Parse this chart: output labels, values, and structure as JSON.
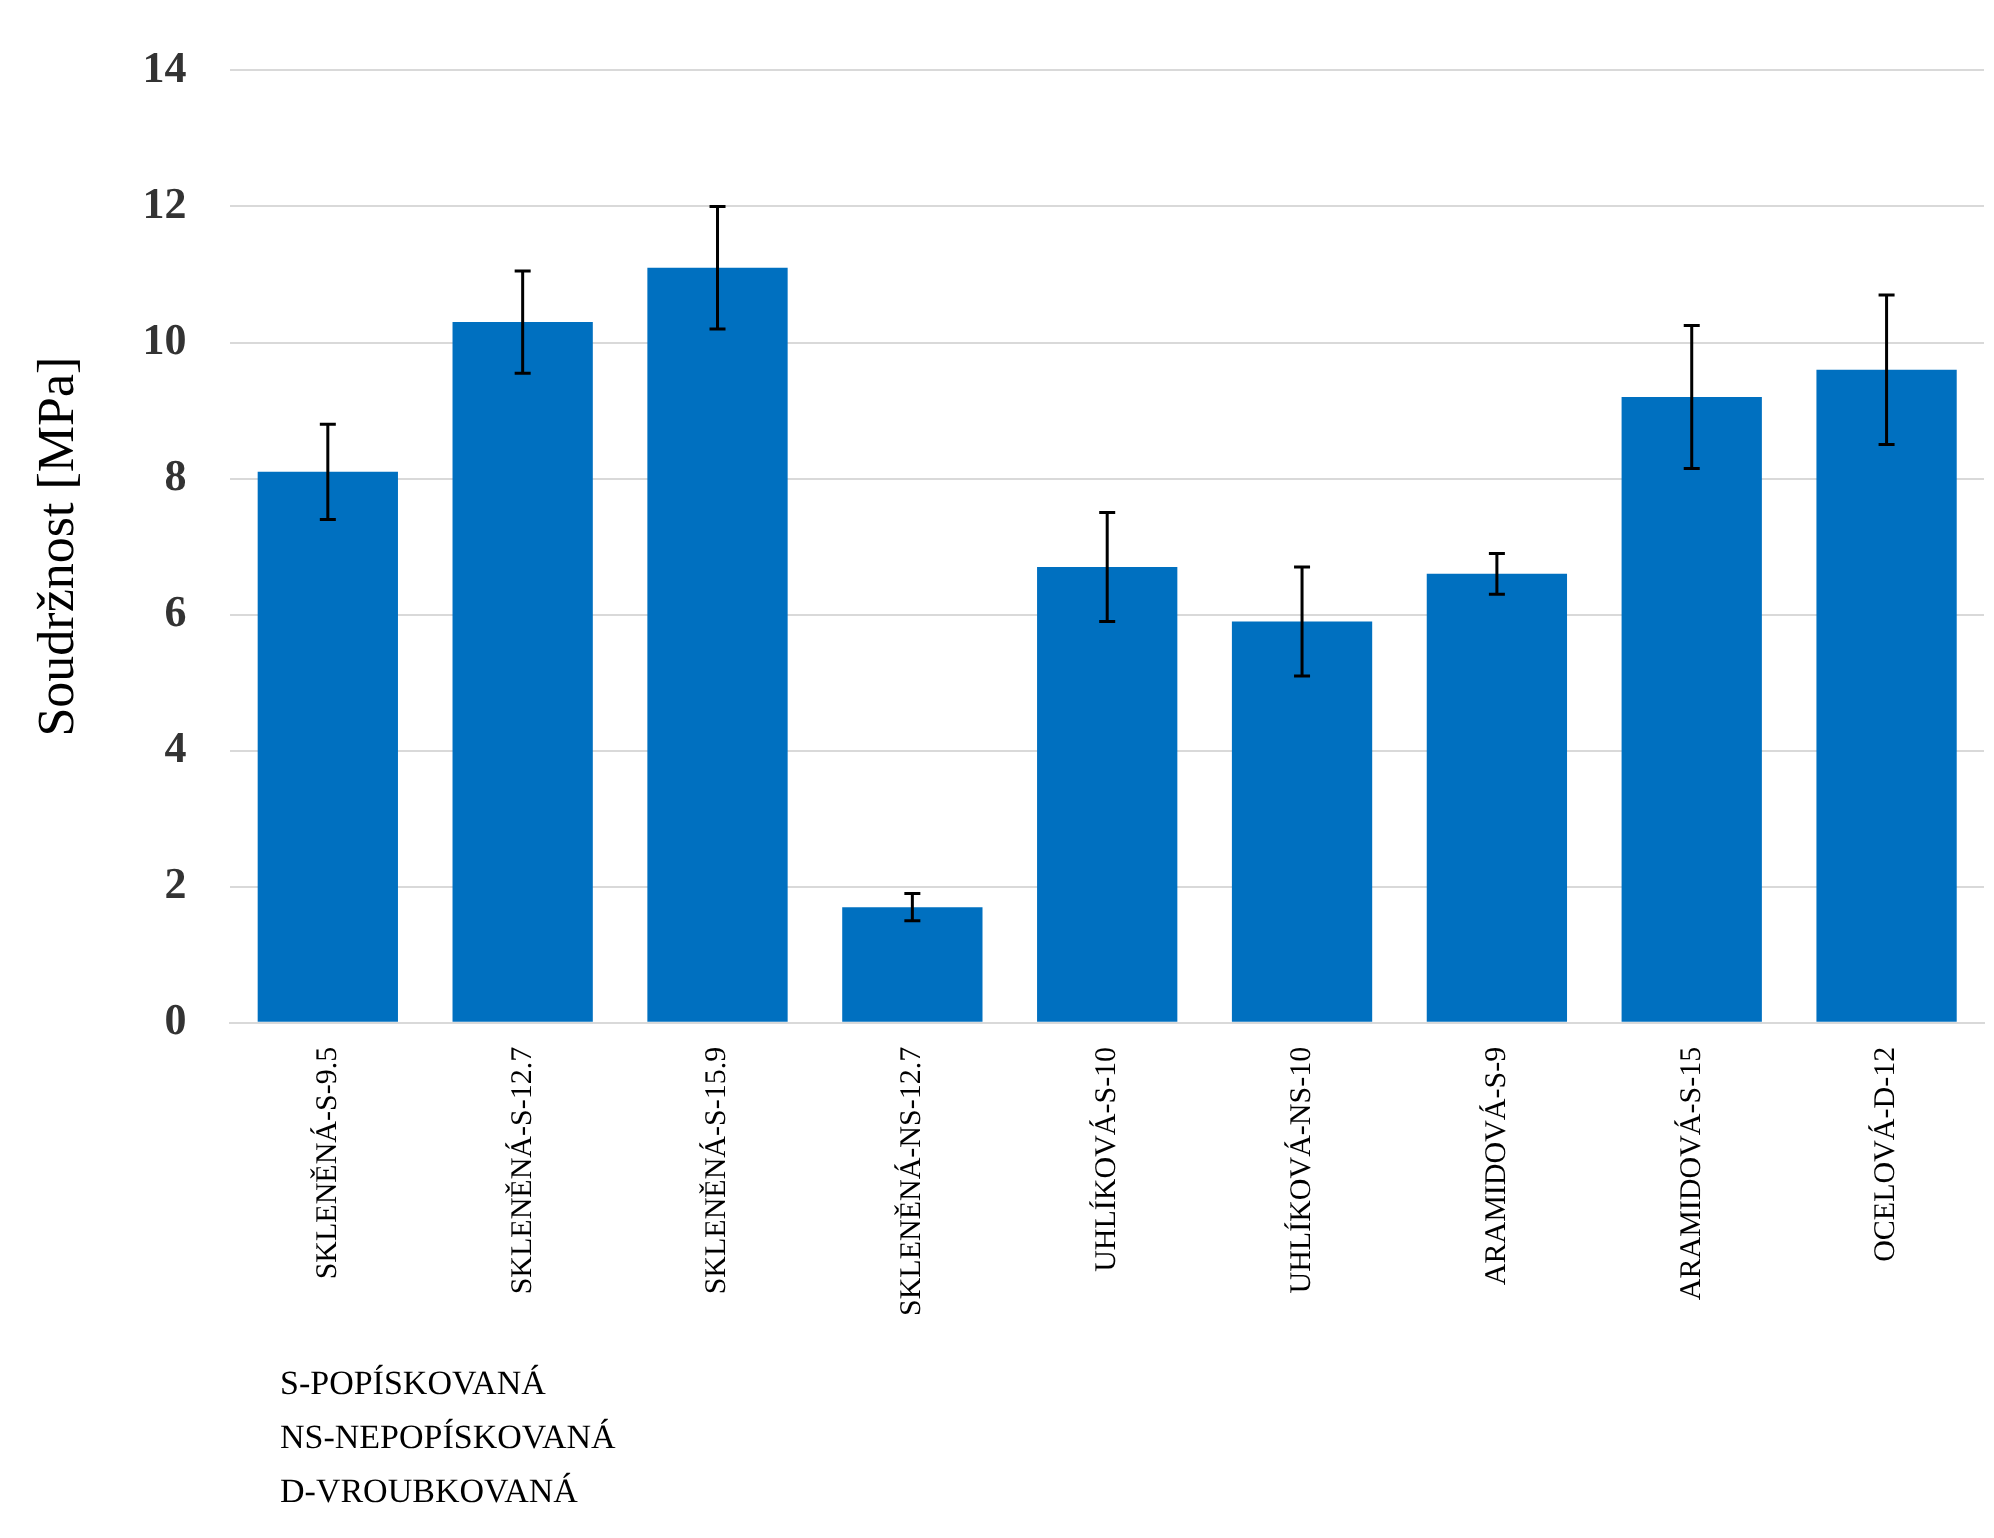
{
  "chart_data": {
    "type": "bar",
    "ylabel": "Soudržnost [MPa]",
    "categories": [
      "SKLENĚNÁ-S-9.5",
      "SKLENĚNÁ-S-12.7",
      "SKLENĚNÁ-S-15.9",
      "SKLENĚNÁ-NS-12.7",
      "UHLÍKOVÁ-S-10",
      "UHLÍKOVÁ-NS-10",
      "ARAMIDOVÁ-S-9",
      "ARAMIDOVÁ-S-15",
      "OCELOVÁ-D-12"
    ],
    "values": [
      8.1,
      10.3,
      11.1,
      1.7,
      6.7,
      5.9,
      6.6,
      9.2,
      9.6
    ],
    "errors": [
      0.7,
      0.75,
      0.9,
      0.2,
      0.8,
      0.8,
      0.3,
      1.05,
      1.1
    ],
    "color": "#0070c0",
    "ylim": [
      0,
      14
    ],
    "yticks": [
      0,
      2,
      4,
      6,
      8,
      10,
      12,
      14
    ],
    "grid": "y",
    "legend": false,
    "annotations": [
      "S-POPÍSKOVANÁ",
      "NS-NEPOPÍSKOVANÁ",
      "D-VROUBKOVANÁ"
    ]
  }
}
